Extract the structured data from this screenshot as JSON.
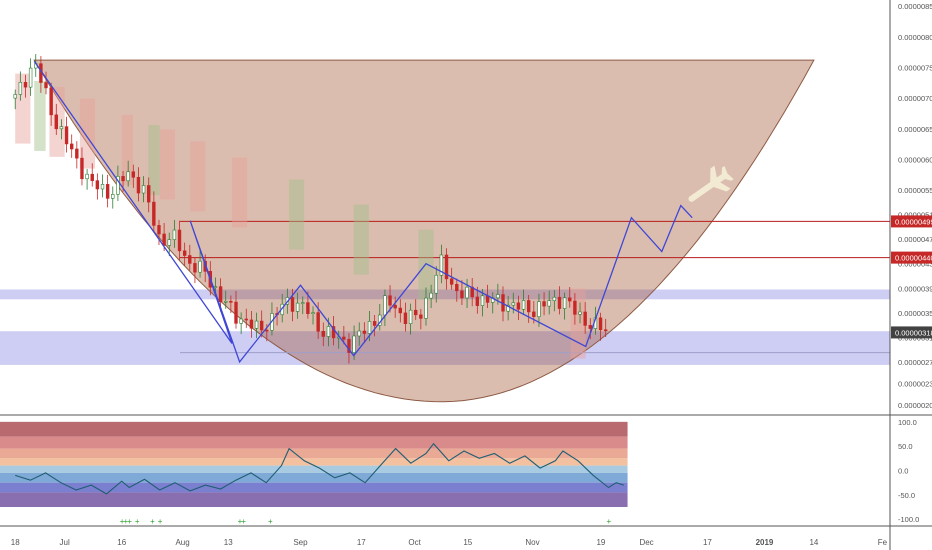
{
  "chart_data": {
    "type": "candlestick",
    "price_scale": {
      "ticks": [
        "0.00000850",
        "0.00000800",
        "0.00000750",
        "0.00000700",
        "0.00000650",
        "0.00000600",
        "0.00000550",
        "0.00000510",
        "0.00000470",
        "0.00000430",
        "0.00000390",
        "0.00000350",
        "0.00000310",
        "0.00000270",
        "0.00000235",
        "0.00000200"
      ],
      "ylim": [
        1.85e-06,
        8.6e-06
      ]
    },
    "price_badges": [
      {
        "label": "0.00000499",
        "value": 4.99e-06,
        "color": "#c62828"
      },
      {
        "label": "0.00000440",
        "value": 4.4e-06,
        "color": "#c62828"
      },
      {
        "label": "0.00000318",
        "value": 3.18e-06,
        "color": "#424242"
      }
    ],
    "horizontal_lines": [
      {
        "value": 4.99e-06,
        "color": "#b71c1c"
      },
      {
        "value": 4.4e-06,
        "color": "#b71c1c"
      },
      {
        "value": 2.85e-06,
        "color": "#9e9ec9"
      }
    ],
    "support_zones": [
      {
        "from": 3.72e-06,
        "to": 3.88e-06,
        "color": "#c5c5f2"
      },
      {
        "from": 2.65e-06,
        "to": 3.2e-06,
        "color": "#c5c5f2"
      }
    ],
    "x_tick_labels": [
      {
        "label": "18",
        "day": 0
      },
      {
        "label": "Jul",
        "day": 13
      },
      {
        "label": "16",
        "day": 28
      },
      {
        "label": "Aug",
        "day": 44
      },
      {
        "label": "13",
        "day": 56
      },
      {
        "label": "Sep",
        "day": 75
      },
      {
        "label": "17",
        "day": 91
      },
      {
        "label": "Oct",
        "day": 105
      },
      {
        "label": "15",
        "day": 119
      },
      {
        "label": "Nov",
        "day": 136
      },
      {
        "label": "19",
        "day": 154
      },
      {
        "label": "Dec",
        "day": 166
      },
      {
        "label": "17",
        "day": 182
      },
      {
        "label": "2019",
        "day": 197
      },
      {
        "label": "14",
        "day": 210
      },
      {
        "label": "Fe",
        "day": 228
      }
    ],
    "x_range_days": [
      -4,
      230
    ],
    "price_path": [
      [
        0,
        700
      ],
      [
        5,
        760
      ],
      [
        10,
        670
      ],
      [
        15,
        610
      ],
      [
        20,
        560
      ],
      [
        25,
        545
      ],
      [
        30,
        580
      ],
      [
        34,
        545
      ],
      [
        38,
        470
      ],
      [
        42,
        470
      ],
      [
        46,
        430
      ],
      [
        50,
        415
      ],
      [
        54,
        375
      ],
      [
        58,
        345
      ],
      [
        60,
        340
      ],
      [
        64,
        320
      ],
      [
        68,
        345
      ],
      [
        72,
        370
      ],
      [
        76,
        360
      ],
      [
        80,
        325
      ],
      [
        84,
        310
      ],
      [
        88,
        300
      ],
      [
        90,
        310
      ],
      [
        94,
        335
      ],
      [
        98,
        370
      ],
      [
        102,
        345
      ],
      [
        106,
        340
      ],
      [
        110,
        400
      ],
      [
        112,
        430
      ],
      [
        116,
        385
      ],
      [
        120,
        375
      ],
      [
        126,
        370
      ],
      [
        132,
        360
      ],
      [
        136,
        355
      ],
      [
        140,
        365
      ],
      [
        144,
        375
      ],
      [
        148,
        345
      ],
      [
        152,
        330
      ],
      [
        156,
        318
      ]
    ],
    "pattern_path": [
      [
        5,
        760
      ],
      [
        57,
        300
      ],
      [
        46,
        500
      ],
      [
        59,
        270
      ],
      [
        75,
        395
      ],
      [
        89,
        280
      ],
      [
        108,
        430
      ],
      [
        150,
        295
      ],
      [
        162,
        505
      ],
      [
        170,
        450
      ],
      [
        175,
        525
      ],
      [
        178,
        505
      ]
    ],
    "cup": {
      "left": [
        5,
        7.62e-06
      ],
      "right": [
        210,
        7.62e-06
      ],
      "bottom": [
        112,
        2.05e-06
      ]
    },
    "ticker_note": "cup-and-handle projection",
    "oscillator": {
      "ticks": [
        "100.0",
        "50.0",
        "0.0",
        "-50.0",
        "-100.0"
      ],
      "ylim": [
        -112,
        112
      ],
      "bands": [
        {
          "from": 100,
          "to": 70,
          "color": "#b96a6f"
        },
        {
          "from": 70,
          "to": 45,
          "color": "#d98a8a"
        },
        {
          "from": 45,
          "to": 25,
          "color": "#eaa995"
        },
        {
          "from": 25,
          "to": 10,
          "color": "#f3c0a0"
        },
        {
          "from": 10,
          "to": -5,
          "color": "#a9cbe2"
        },
        {
          "from": -5,
          "to": -25,
          "color": "#7fa9d6"
        },
        {
          "from": -25,
          "to": -45,
          "color": "#7b7fcf"
        },
        {
          "from": -45,
          "to": -75,
          "color": "#8a6fb0"
        }
      ],
      "values": [
        [
          0,
          -10
        ],
        [
          4,
          -20
        ],
        [
          8,
          -5
        ],
        [
          12,
          -25
        ],
        [
          16,
          -40
        ],
        [
          20,
          -30
        ],
        [
          24,
          -48
        ],
        [
          28,
          -22
        ],
        [
          30,
          -35
        ],
        [
          34,
          -18
        ],
        [
          38,
          -40
        ],
        [
          42,
          -25
        ],
        [
          46,
          -42
        ],
        [
          50,
          -30
        ],
        [
          54,
          -38
        ],
        [
          58,
          -20
        ],
        [
          62,
          -5
        ],
        [
          66,
          -25
        ],
        [
          70,
          10
        ],
        [
          72,
          45
        ],
        [
          76,
          20
        ],
        [
          80,
          5
        ],
        [
          84,
          -15
        ],
        [
          88,
          -5
        ],
        [
          92,
          -25
        ],
        [
          96,
          10
        ],
        [
          100,
          45
        ],
        [
          104,
          15
        ],
        [
          108,
          35
        ],
        [
          110,
          55
        ],
        [
          114,
          20
        ],
        [
          118,
          40
        ],
        [
          122,
          25
        ],
        [
          126,
          35
        ],
        [
          130,
          15
        ],
        [
          134,
          30
        ],
        [
          138,
          5
        ],
        [
          142,
          20
        ],
        [
          144,
          40
        ],
        [
          148,
          20
        ],
        [
          152,
          -10
        ],
        [
          156,
          -35
        ],
        [
          158,
          -25
        ],
        [
          160,
          -30
        ]
      ],
      "signal_marks": [
        28,
        29,
        30,
        32,
        36,
        38,
        59,
        60,
        67,
        156
      ]
    }
  }
}
